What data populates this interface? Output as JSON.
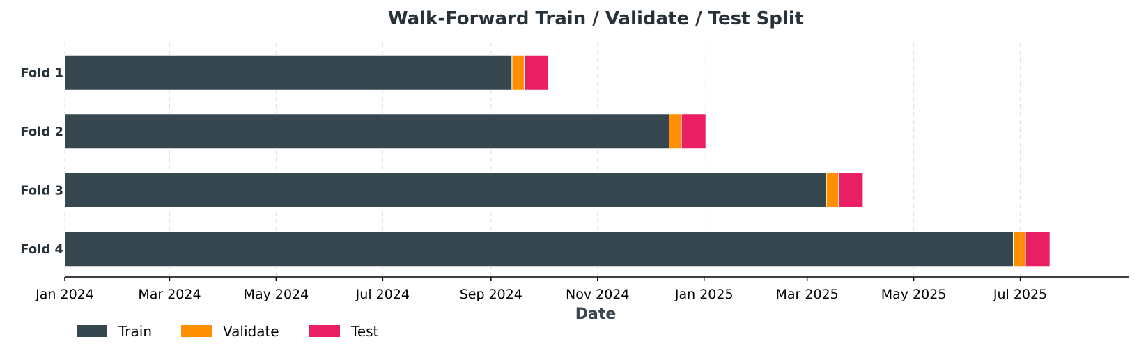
{
  "chart_data": {
    "type": "bar",
    "orientation": "horizontal",
    "title": "Walk-Forward Train / Validate / Test Split",
    "xlabel": "Date",
    "ylabel": "",
    "x_axis_type": "date",
    "xlim": [
      "2024-01-01",
      "2025-09-01"
    ],
    "x_ticks": [
      {
        "date": "2024-01-01",
        "label": "Jan 2024"
      },
      {
        "date": "2024-03-01",
        "label": "Mar 2024"
      },
      {
        "date": "2024-05-01",
        "label": "May 2024"
      },
      {
        "date": "2024-07-01",
        "label": "Jul 2024"
      },
      {
        "date": "2024-09-01",
        "label": "Sep 2024"
      },
      {
        "date": "2024-11-01",
        "label": "Nov 2024"
      },
      {
        "date": "2025-01-01",
        "label": "Jan 2025"
      },
      {
        "date": "2025-03-01",
        "label": "Mar 2025"
      },
      {
        "date": "2025-05-01",
        "label": "May 2025"
      },
      {
        "date": "2025-07-01",
        "label": "Jul 2025"
      }
    ],
    "grid": "vertical dashed",
    "legend_position": "bottom-left",
    "series": [
      {
        "name": "Train",
        "color": "#37474f"
      },
      {
        "name": "Validate",
        "color": "#ff8f00"
      },
      {
        "name": "Test",
        "color": "#e91e63"
      }
    ],
    "folds": [
      {
        "label": "Fold 1",
        "segments": [
          {
            "series": "Train",
            "start": "2024-01-01",
            "end": "2024-09-13"
          },
          {
            "series": "Validate",
            "start": "2024-09-13",
            "end": "2024-09-20"
          },
          {
            "series": "Test",
            "start": "2024-09-20",
            "end": "2024-10-04"
          }
        ]
      },
      {
        "label": "Fold 2",
        "segments": [
          {
            "series": "Train",
            "start": "2024-01-01",
            "end": "2024-12-12"
          },
          {
            "series": "Validate",
            "start": "2024-12-12",
            "end": "2024-12-19"
          },
          {
            "series": "Test",
            "start": "2024-12-19",
            "end": "2025-01-02"
          }
        ]
      },
      {
        "label": "Fold 3",
        "segments": [
          {
            "series": "Train",
            "start": "2024-01-01",
            "end": "2025-03-12"
          },
          {
            "series": "Validate",
            "start": "2025-03-12",
            "end": "2025-03-19"
          },
          {
            "series": "Test",
            "start": "2025-03-19",
            "end": "2025-04-02"
          }
        ]
      },
      {
        "label": "Fold 4",
        "segments": [
          {
            "series": "Train",
            "start": "2024-01-01",
            "end": "2025-06-27"
          },
          {
            "series": "Validate",
            "start": "2025-06-27",
            "end": "2025-07-04"
          },
          {
            "series": "Test",
            "start": "2025-07-04",
            "end": "2025-07-18"
          }
        ]
      }
    ]
  }
}
